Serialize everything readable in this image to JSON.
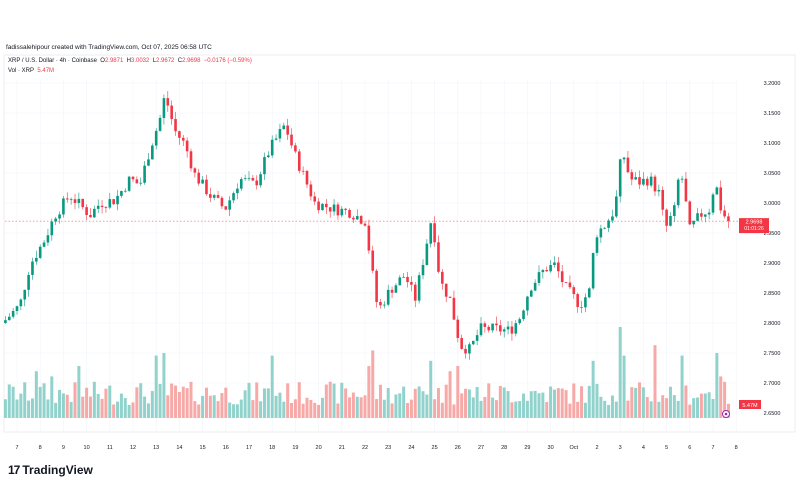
{
  "caption": "fadissalehipour created with TradingView.com, Oct 07, 2025 06:58 UTC",
  "legend": {
    "symbol": "XRP / U.S. Dollar · 4h · Coinbase",
    "o_label": "O",
    "o": "2.9871",
    "h_label": "H",
    "h": "3.0032",
    "l_label": "L",
    "l": "2.9672",
    "c_label": "C",
    "c": "2.9698",
    "change": "−0.0176 (−0.59%)",
    "vol_label": "Vol · XRP",
    "vol": "5.47M"
  },
  "price_tag": {
    "price": "2.9698",
    "countdown": "01:01:26"
  },
  "volume_tag": "5.47M",
  "brand": "TradingView",
  "colors": {
    "up": "#089981",
    "down": "#f23645",
    "up_vol": "#92d2cc",
    "down_vol": "#f7a9a7",
    "grid": "#f0f3fa",
    "event": "#9c27b0"
  },
  "chart_data": {
    "type": "candlestick",
    "title": "XRP / U.S. Dollar · 4h · Coinbase",
    "timeframe_hours": 4,
    "x_ticks": [
      "7",
      "8",
      "9",
      "10",
      "11",
      "12",
      "13",
      "14",
      "15",
      "16",
      "17",
      "18",
      "19",
      "20",
      "21",
      "22",
      "23",
      "24",
      "25",
      "26",
      "27",
      "28",
      "29",
      "30",
      "Oct",
      "2",
      "3",
      "4",
      "5",
      "6",
      "7",
      "8"
    ],
    "y_ticks": [
      "3.2000",
      "3.1500",
      "3.1000",
      "3.0500",
      "3.0000",
      "2.9500",
      "2.9000",
      "2.8500",
      "2.8000",
      "2.7500",
      "2.7000",
      "2.6500"
    ],
    "ylim": [
      2.65,
      3.2
    ],
    "close_path_days_vs_price": [
      [
        -0.5,
        2.805
      ],
      [
        0.13,
        2.83
      ],
      [
        0.56,
        2.897
      ],
      [
        1.21,
        2.94
      ],
      [
        1.64,
        2.98
      ],
      [
        2.28,
        3.013
      ],
      [
        3.15,
        2.98
      ],
      [
        3.58,
        3.0
      ],
      [
        4.22,
        3.005
      ],
      [
        4.87,
        3.04
      ],
      [
        5.3,
        3.03
      ],
      [
        5.73,
        3.09
      ],
      [
        6.16,
        3.14
      ],
      [
        6.38,
        3.18
      ],
      [
        6.81,
        3.12
      ],
      [
        7.24,
        3.097
      ],
      [
        7.67,
        3.047
      ],
      [
        8.32,
        3.013
      ],
      [
        8.97,
        2.99
      ],
      [
        9.61,
        3.04
      ],
      [
        10.26,
        3.03
      ],
      [
        10.9,
        3.09
      ],
      [
        11.55,
        3.13
      ],
      [
        11.98,
        3.08
      ],
      [
        12.41,
        3.04
      ],
      [
        12.84,
        3.0
      ],
      [
        13.71,
        2.99
      ],
      [
        14.35,
        2.985
      ],
      [
        15.0,
        2.97
      ],
      [
        15.3,
        2.888
      ],
      [
        15.56,
        2.82
      ],
      [
        16.08,
        2.855
      ],
      [
        16.72,
        2.88
      ],
      [
        17.16,
        2.84
      ],
      [
        17.59,
        2.92
      ],
      [
        17.89,
        2.98
      ],
      [
        18.23,
        2.87
      ],
      [
        18.66,
        2.84
      ],
      [
        19.1,
        2.763
      ],
      [
        19.53,
        2.755
      ],
      [
        19.96,
        2.79
      ],
      [
        20.6,
        2.79
      ],
      [
        21.25,
        2.787
      ],
      [
        21.68,
        2.81
      ],
      [
        22.11,
        2.86
      ],
      [
        22.76,
        2.89
      ],
      [
        23.19,
        2.897
      ],
      [
        23.62,
        2.86
      ],
      [
        24.27,
        2.83
      ],
      [
        24.7,
        2.855
      ],
      [
        24.91,
        2.947
      ],
      [
        25.34,
        2.963
      ],
      [
        25.78,
        2.99
      ],
      [
        26.08,
        3.09
      ],
      [
        26.42,
        3.04
      ],
      [
        26.85,
        3.035
      ],
      [
        27.28,
        3.04
      ],
      [
        27.72,
        3.013
      ],
      [
        27.93,
        2.955
      ],
      [
        28.36,
        2.99
      ],
      [
        28.58,
        3.063
      ],
      [
        29.0,
        2.955
      ],
      [
        29.44,
        2.98
      ],
      [
        29.87,
        2.99
      ],
      [
        30.09,
        3.04
      ],
      [
        30.3,
        2.995
      ],
      [
        30.6,
        2.9698
      ]
    ],
    "volume_spikes_days_vs_millions": [
      [
        0.8,
        18
      ],
      [
        1.5,
        16
      ],
      [
        2.6,
        20
      ],
      [
        6.0,
        24
      ],
      [
        6.3,
        25
      ],
      [
        11.0,
        24
      ],
      [
        15.3,
        26
      ],
      [
        15.2,
        20
      ],
      [
        17.9,
        22
      ],
      [
        18.6,
        18
      ],
      [
        19.0,
        20
      ],
      [
        24.9,
        22
      ],
      [
        26.0,
        35
      ],
      [
        26.1,
        24
      ],
      [
        27.5,
        28
      ],
      [
        28.6,
        24
      ],
      [
        30.1,
        25
      ],
      [
        30.3,
        16
      ]
    ],
    "current_volume_millions": 5.47,
    "current_price": 2.9698
  }
}
